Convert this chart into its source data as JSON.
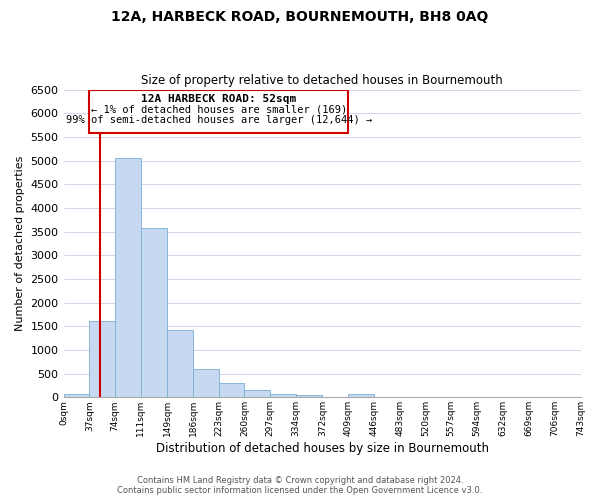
{
  "title": "12A, HARBECK ROAD, BOURNEMOUTH, BH8 0AQ",
  "subtitle": "Size of property relative to detached houses in Bournemouth",
  "xlabel": "Distribution of detached houses by size in Bournemouth",
  "ylabel": "Number of detached properties",
  "bar_color": "#c6d9f0",
  "bar_edge_color": "#7bafd4",
  "vline_color": "#cc0000",
  "annotation_box_color": "#cc0000",
  "background_color": "#ffffff",
  "grid_color": "#d0d8e8",
  "bin_edges": [
    0,
    37,
    74,
    111,
    149,
    186,
    223,
    260,
    297,
    334,
    372,
    409,
    446,
    483,
    520,
    557,
    594,
    632,
    669,
    706,
    743
  ],
  "bar_heights": [
    60,
    1620,
    5060,
    3570,
    1420,
    590,
    310,
    150,
    80,
    40,
    15,
    60,
    5,
    0,
    0,
    0,
    0,
    0,
    0,
    0
  ],
  "tick_labels": [
    "0sqm",
    "37sqm",
    "74sqm",
    "111sqm",
    "149sqm",
    "186sqm",
    "223sqm",
    "260sqm",
    "297sqm",
    "334sqm",
    "372sqm",
    "409sqm",
    "446sqm",
    "483sqm",
    "520sqm",
    "557sqm",
    "594sqm",
    "632sqm",
    "669sqm",
    "706sqm",
    "743sqm"
  ],
  "ylim": [
    0,
    6500
  ],
  "yticks": [
    0,
    500,
    1000,
    1500,
    2000,
    2500,
    3000,
    3500,
    4000,
    4500,
    5000,
    5500,
    6000,
    6500
  ],
  "vline_x": 52,
  "annotation_title": "12A HARBECK ROAD: 52sqm",
  "annotation_line1": "← 1% of detached houses are smaller (169)",
  "annotation_line2": "99% of semi-detached houses are larger (12,644) →",
  "footer_line1": "Contains HM Land Registry data © Crown copyright and database right 2024.",
  "footer_line2": "Contains public sector information licensed under the Open Government Licence v3.0."
}
